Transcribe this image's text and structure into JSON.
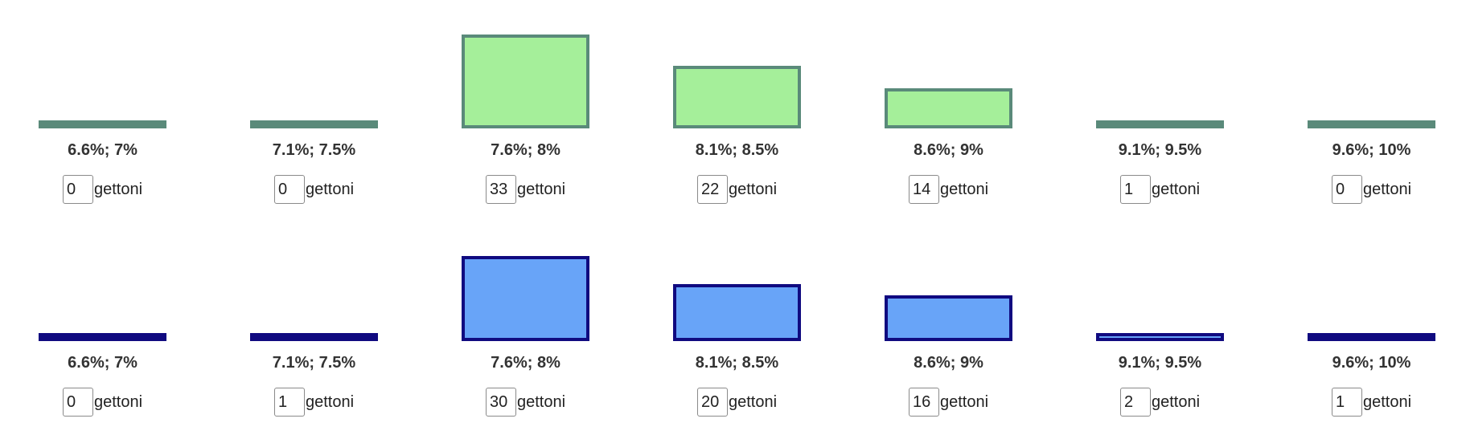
{
  "token_unit": "gettoni",
  "max_tokens": 33,
  "bins": [
    "6.6%; 7%",
    "7.1%; 7.5%",
    "7.6%; 8%",
    "8.1%; 8.5%",
    "8.6%; 9%",
    "9.1%; 9.5%",
    "9.6%; 10%"
  ],
  "rows": [
    {
      "id": "green",
      "fill_color": "#a5ef9a",
      "border_color": "#5a8a7a",
      "tokens": [
        0,
        0,
        33,
        22,
        14,
        1,
        0
      ]
    },
    {
      "id": "blue",
      "fill_color": "#68a4f8",
      "border_color": "#100a80",
      "tokens": [
        0,
        1,
        30,
        20,
        16,
        2,
        1
      ]
    }
  ]
}
